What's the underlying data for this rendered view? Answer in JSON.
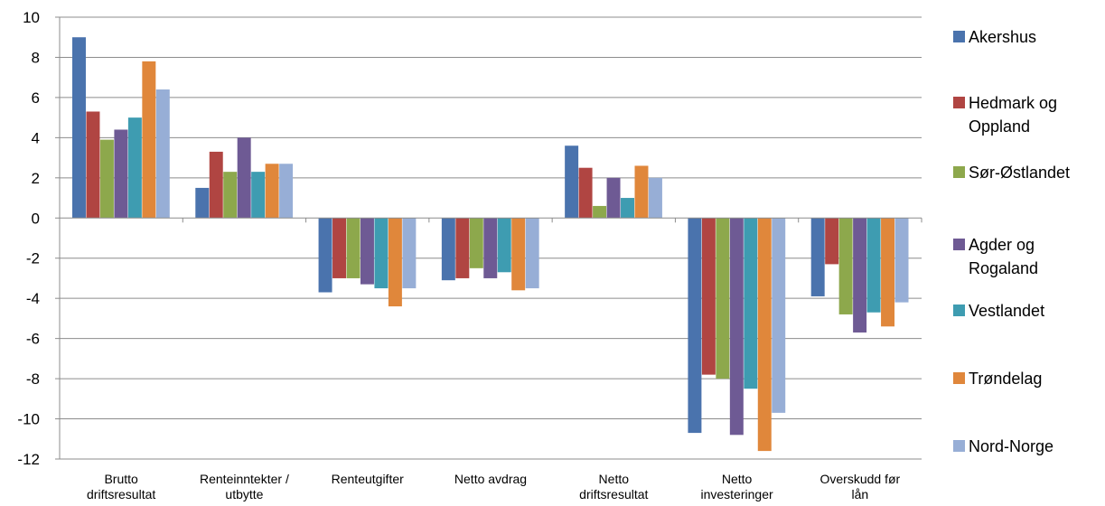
{
  "chart_data": {
    "type": "bar",
    "categories": [
      [
        "Brutto",
        "driftsresultat"
      ],
      [
        "Renteinntekter /",
        "utbytte"
      ],
      [
        "Renteutgifter"
      ],
      [
        "Netto avdrag"
      ],
      [
        "Netto",
        "driftsresultat"
      ],
      [
        "Netto",
        "investeringer"
      ],
      [
        "Overskudd før",
        "lån"
      ]
    ],
    "ylim": [
      -12,
      10
    ],
    "yticks": [
      "10",
      "8",
      "6",
      "4",
      "2",
      "0",
      "-2",
      "-4",
      "-6",
      "-8",
      "-10",
      "-12"
    ],
    "grid": true,
    "legend_position": "right",
    "series": [
      {
        "name": "Akershus",
        "legend_lines": [
          "Akershus"
        ],
        "color": "#4A73AD",
        "values": [
          9.0,
          1.5,
          -3.7,
          -3.1,
          3.6,
          -10.7,
          -3.9
        ]
      },
      {
        "name": "Hedmark og Oppland",
        "legend_lines": [
          "Hedmark og",
          "Oppland"
        ],
        "color": "#B04542",
        "values": [
          5.3,
          3.3,
          -3.0,
          -3.0,
          2.5,
          -7.8,
          -2.3
        ]
      },
      {
        "name": "Sør-Østlandet",
        "legend_lines": [
          "Sør-Østlandet"
        ],
        "color": "#8DA84C",
        "values": [
          3.9,
          2.3,
          -3.0,
          -2.5,
          0.6,
          -8.0,
          -4.8
        ]
      },
      {
        "name": "Agder og Rogaland",
        "legend_lines": [
          "Agder og",
          "Rogaland"
        ],
        "color": "#6E5A94",
        "values": [
          4.4,
          4.0,
          -3.3,
          -3.0,
          2.0,
          -10.8,
          -5.7
        ]
      },
      {
        "name": "Vestlandet",
        "legend_lines": [
          "Vestlandet"
        ],
        "color": "#3E9CB1",
        "values": [
          5.0,
          2.3,
          -3.5,
          -2.7,
          1.0,
          -8.5,
          -4.7
        ]
      },
      {
        "name": "Trøndelag",
        "legend_lines": [
          "Trøndelag"
        ],
        "color": "#E0873B",
        "values": [
          7.8,
          2.7,
          -4.4,
          -3.6,
          2.6,
          -11.6,
          -5.4
        ]
      },
      {
        "name": "Nord-Norge",
        "legend_lines": [
          "Nord-Norge"
        ],
        "color": "#97AED6",
        "values": [
          6.4,
          2.7,
          -3.5,
          -3.5,
          2.0,
          -9.7,
          -4.2
        ]
      }
    ]
  }
}
